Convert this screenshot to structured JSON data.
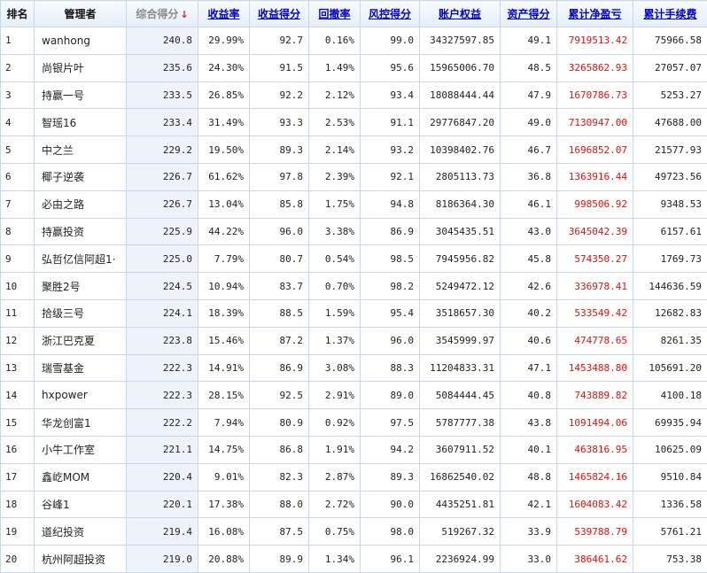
{
  "colors": {
    "accent_link": "#0000cc",
    "profit_red": "#e01010",
    "sort_arrow": "#e02020"
  },
  "sort_indicator": "↓",
  "headers": {
    "rank": "排名",
    "manager": "管理者",
    "score": "综合得分",
    "return_rate": "收益率",
    "return_score": "收益得分",
    "drawdown": "回撤率",
    "risk_score": "风控得分",
    "equity": "账户权益",
    "asset_score": "资产得分",
    "net_profit": "累计净盈亏",
    "fees": "累计手续费"
  },
  "rows": [
    {
      "rank": "1",
      "manager": "wanhong",
      "score": "240.8",
      "return_rate": "29.99%",
      "return_score": "92.7",
      "drawdown": "0.16%",
      "risk_score": "99.0",
      "equity": "34327597.85",
      "asset_score": "49.1",
      "net_profit": "7919513.42",
      "fees": "75966.58"
    },
    {
      "rank": "2",
      "manager": "尚银片叶",
      "score": "235.6",
      "return_rate": "24.30%",
      "return_score": "91.5",
      "drawdown": "1.49%",
      "risk_score": "95.6",
      "equity": "15965006.70",
      "asset_score": "48.5",
      "net_profit": "3265862.93",
      "fees": "27057.07"
    },
    {
      "rank": "3",
      "manager": "持赢一号",
      "score": "233.5",
      "return_rate": "26.85%",
      "return_score": "92.2",
      "drawdown": "2.12%",
      "risk_score": "93.4",
      "equity": "18088444.44",
      "asset_score": "47.9",
      "net_profit": "1670786.73",
      "fees": "5253.27"
    },
    {
      "rank": "4",
      "manager": "智瑶16",
      "score": "233.4",
      "return_rate": "31.49%",
      "return_score": "93.3",
      "drawdown": "2.53%",
      "risk_score": "91.1",
      "equity": "29776847.20",
      "asset_score": "49.0",
      "net_profit": "7130947.00",
      "fees": "47688.00"
    },
    {
      "rank": "5",
      "manager": "中之兰",
      "score": "229.2",
      "return_rate": "19.50%",
      "return_score": "89.3",
      "drawdown": "2.14%",
      "risk_score": "93.2",
      "equity": "10398402.76",
      "asset_score": "46.7",
      "net_profit": "1696852.07",
      "fees": "21577.93"
    },
    {
      "rank": "6",
      "manager": "椰子逆袭",
      "score": "226.7",
      "return_rate": "61.62%",
      "return_score": "97.8",
      "drawdown": "2.39%",
      "risk_score": "92.1",
      "equity": "2805113.73",
      "asset_score": "36.8",
      "net_profit": "1363916.44",
      "fees": "49723.56"
    },
    {
      "rank": "7",
      "manager": "必由之路",
      "score": "226.7",
      "return_rate": "13.04%",
      "return_score": "85.8",
      "drawdown": "1.75%",
      "risk_score": "94.8",
      "equity": "8186364.30",
      "asset_score": "46.1",
      "net_profit": "998506.92",
      "fees": "9348.53"
    },
    {
      "rank": "8",
      "manager": "持赢投资",
      "score": "225.9",
      "return_rate": "44.22%",
      "return_score": "96.0",
      "drawdown": "3.38%",
      "risk_score": "86.9",
      "equity": "3045435.51",
      "asset_score": "43.0",
      "net_profit": "3645042.39",
      "fees": "6157.61"
    },
    {
      "rank": "9",
      "manager": "弘哲亿信阿超1·",
      "score": "225.0",
      "return_rate": "7.79%",
      "return_score": "80.7",
      "drawdown": "0.54%",
      "risk_score": "98.5",
      "equity": "7945956.82",
      "asset_score": "45.8",
      "net_profit": "574350.27",
      "fees": "1769.73"
    },
    {
      "rank": "10",
      "manager": "聚胜2号",
      "score": "224.5",
      "return_rate": "10.94%",
      "return_score": "83.7",
      "drawdown": "0.70%",
      "risk_score": "98.2",
      "equity": "5249472.12",
      "asset_score": "42.6",
      "net_profit": "336978.41",
      "fees": "144636.59"
    },
    {
      "rank": "11",
      "manager": "拾级三号",
      "score": "224.1",
      "return_rate": "18.39%",
      "return_score": "88.5",
      "drawdown": "1.59%",
      "risk_score": "95.4",
      "equity": "3518657.30",
      "asset_score": "40.2",
      "net_profit": "533549.42",
      "fees": "12682.83"
    },
    {
      "rank": "12",
      "manager": "浙江巴克夏",
      "score": "223.8",
      "return_rate": "15.46%",
      "return_score": "87.2",
      "drawdown": "1.37%",
      "risk_score": "96.0",
      "equity": "3545999.97",
      "asset_score": "40.6",
      "net_profit": "474778.65",
      "fees": "8261.35"
    },
    {
      "rank": "13",
      "manager": "瑞雪基金",
      "score": "222.3",
      "return_rate": "14.91%",
      "return_score": "86.9",
      "drawdown": "3.08%",
      "risk_score": "88.3",
      "equity": "11204833.31",
      "asset_score": "47.1",
      "net_profit": "1453488.80",
      "fees": "105691.20"
    },
    {
      "rank": "14",
      "manager": "hxpower",
      "score": "222.3",
      "return_rate": "28.15%",
      "return_score": "92.5",
      "drawdown": "2.91%",
      "risk_score": "89.0",
      "equity": "5084444.45",
      "asset_score": "40.8",
      "net_profit": "743889.82",
      "fees": "4100.18"
    },
    {
      "rank": "15",
      "manager": "华龙创富1",
      "score": "222.2",
      "return_rate": "7.94%",
      "return_score": "80.9",
      "drawdown": "0.92%",
      "risk_score": "97.5",
      "equity": "5787777.38",
      "asset_score": "43.8",
      "net_profit": "1091494.06",
      "fees": "69935.94"
    },
    {
      "rank": "16",
      "manager": "小牛工作室",
      "score": "221.1",
      "return_rate": "14.75%",
      "return_score": "86.8",
      "drawdown": "1.91%",
      "risk_score": "94.2",
      "equity": "3607911.52",
      "asset_score": "40.1",
      "net_profit": "463816.95",
      "fees": "10625.09"
    },
    {
      "rank": "17",
      "manager": "鑫屹MOM",
      "score": "220.4",
      "return_rate": "9.01%",
      "return_score": "82.3",
      "drawdown": "2.87%",
      "risk_score": "89.3",
      "equity": "16862540.02",
      "asset_score": "48.8",
      "net_profit": "1465824.16",
      "fees": "9510.84"
    },
    {
      "rank": "18",
      "manager": "谷峰1",
      "score": "220.1",
      "return_rate": "17.38%",
      "return_score": "88.0",
      "drawdown": "2.72%",
      "risk_score": "90.0",
      "equity": "4435251.81",
      "asset_score": "42.1",
      "net_profit": "1604083.42",
      "fees": "1336.58"
    },
    {
      "rank": "19",
      "manager": "道纪投资",
      "score": "219.4",
      "return_rate": "16.08%",
      "return_score": "87.5",
      "drawdown": "0.75%",
      "risk_score": "98.0",
      "equity": "519267.32",
      "asset_score": "33.9",
      "net_profit": "539788.79",
      "fees": "5761.21"
    },
    {
      "rank": "20",
      "manager": "杭州阿超投资",
      "score": "219.0",
      "return_rate": "20.88%",
      "return_score": "89.9",
      "drawdown": "1.34%",
      "risk_score": "96.1",
      "equity": "2236924.99",
      "asset_score": "33.0",
      "net_profit": "386461.62",
      "fees": "753.38"
    }
  ]
}
